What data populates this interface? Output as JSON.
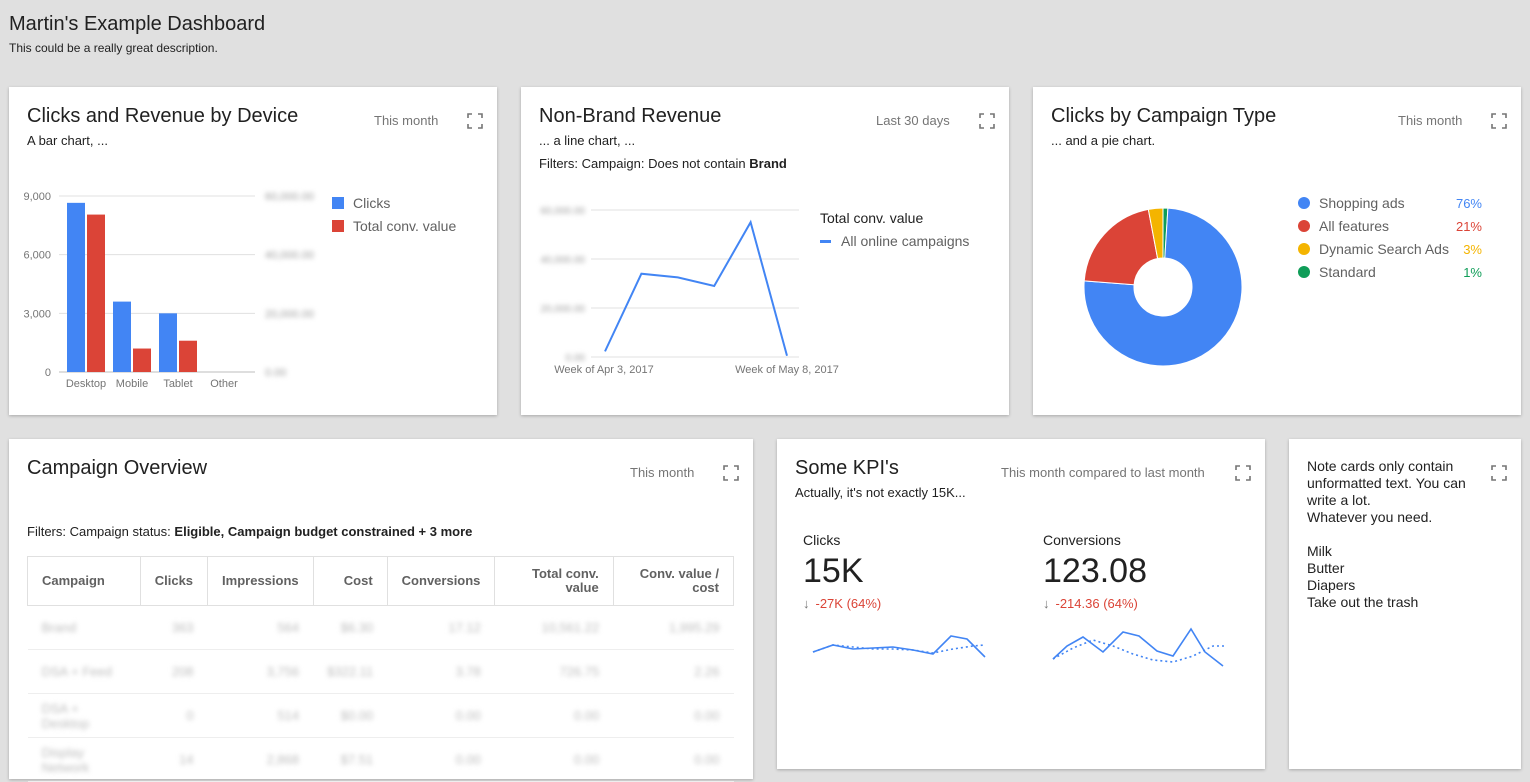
{
  "dashboard": {
    "title": "Martin's Example Dashboard",
    "description": "This could be a really great description."
  },
  "icons": {
    "expand": "fullscreen-expand-icon",
    "trend_down": "arrow-down-icon"
  },
  "colors": {
    "blue": "#4285f4",
    "red": "#db4437",
    "yellow": "#f4b400",
    "green": "#0f9d58"
  },
  "cards": {
    "device": {
      "title": "Clicks and Revenue by Device",
      "subtitle": "A bar chart, ...",
      "range": "This month"
    },
    "nonbrand": {
      "title": "Non-Brand Revenue",
      "subtitle": "... a line chart, ...",
      "range": "Last 30 days",
      "filter_prefix": "Filters: Campaign: Does not contain",
      "filter_value": "Brand"
    },
    "campaign_type": {
      "title": "Clicks by Campaign Type",
      "subtitle": "... and a pie chart.",
      "range": "This month"
    },
    "overview": {
      "title": "Campaign Overview",
      "range": "This month",
      "filter_prefix": "Filters: Campaign status:",
      "filter_value": "Eligible, Campaign budget constrained + 3 more",
      "columns": [
        "Campaign",
        "Clicks",
        "Impressions",
        "Cost",
        "Conversions",
        "Total conv. value",
        "Conv. value / cost"
      ],
      "rows": [
        [
          "Brand",
          "363",
          "564",
          "$6.30",
          "17.12",
          "10,561.22",
          "1,995.29"
        ],
        [
          "DSA + Feed",
          "208",
          "3,756",
          "$322.11",
          "3.78",
          "726.75",
          "2.26"
        ],
        [
          "DSA + Desktop",
          "0",
          "514",
          "$0.00",
          "0.00",
          "0.00",
          "0.00"
        ],
        [
          "Display Network",
          "14",
          "2,868",
          "$7.51",
          "0.00",
          "0.00",
          "0.00"
        ]
      ]
    },
    "kpi": {
      "title": "Some KPI's",
      "subtitle": "Actually, it's not exactly 15K...",
      "range": "This month compared to last month",
      "items": [
        {
          "label": "Clicks",
          "value": "15K",
          "delta": "-27K (64%)"
        },
        {
          "label": "Conversions",
          "value": "123.08",
          "delta": "-214.36 (64%)"
        }
      ]
    },
    "note": {
      "text": "Note cards only contain unformatted text. You can write a lot.\nWhatever you need.\n\nMilk\nButter\nDiapers\nTake out the trash"
    }
  },
  "chart_data": [
    {
      "type": "bar",
      "categories": [
        "Desktop",
        "Mobile",
        "Tablet",
        "Other"
      ],
      "series": [
        {
          "name": "Clicks",
          "values": [
            8650,
            3600,
            3000,
            0
          ],
          "color": "#4285f4"
        },
        {
          "name": "Total conv. value",
          "values": [
            8050,
            1200,
            1600,
            0
          ],
          "color": "#db4437"
        }
      ],
      "yticks": [
        "9,000",
        "6,000",
        "3,000",
        "0"
      ],
      "ylim": [
        0,
        9000
      ],
      "right_axis_ticks": [
        "60,000.00",
        "40,000.00",
        "20,000.00",
        "0.00"
      ],
      "grid": true,
      "legend": "right"
    },
    {
      "type": "line",
      "legend_title": "Total conv. value",
      "series": [
        {
          "name": "All online campaigns",
          "values": [
            2300,
            34000,
            32500,
            29000,
            55000,
            500
          ],
          "color": "#4285f4"
        }
      ],
      "x_tick_labels": [
        "Week of Apr 3, 2017",
        "Week of May 8, 2017"
      ],
      "yticks": [
        "60,000.00",
        "40,000.00",
        "20,000.00",
        "0.00"
      ],
      "ylim": [
        0,
        60000
      ],
      "grid": true,
      "legend": "right"
    },
    {
      "type": "pie",
      "slices": [
        {
          "name": "Shopping ads",
          "percent": 76,
          "label": "76%",
          "color": "#4285f4"
        },
        {
          "name": "All features",
          "percent": 21,
          "label": "21%",
          "color": "#db4437"
        },
        {
          "name": "Dynamic Search Ads",
          "percent": 3,
          "label": "3%",
          "color": "#f4b400"
        },
        {
          "name": "Standard",
          "percent": 1,
          "label": "1%",
          "color": "#0f9d58"
        }
      ],
      "legend": "right"
    }
  ]
}
